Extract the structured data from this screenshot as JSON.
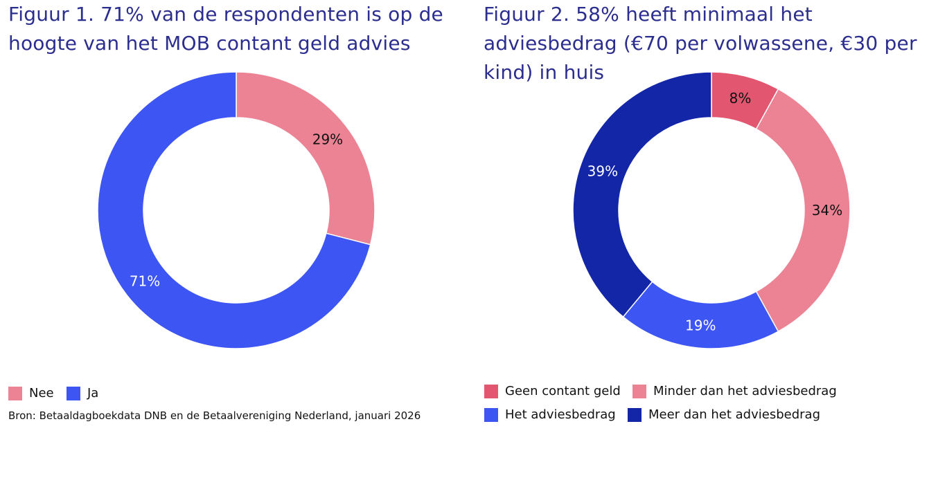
{
  "figure1": {
    "title": "Figuur 1.  71% van de respondenten is op de hoogte van het MOB contant geld advies",
    "legend": [
      {
        "label": "Nee",
        "color": "#ec8395"
      },
      {
        "label": "Ja",
        "color": "#3d55f2"
      }
    ]
  },
  "figure2": {
    "title": "Figuur 2.  58% heeft minimaal het adviesbedrag (€70 per volwassene, €30 per kind) in huis",
    "legend": [
      {
        "label": "Geen contant geld",
        "color": "#e25670"
      },
      {
        "label": "Minder dan het adviesbedrag",
        "color": "#ec8395"
      },
      {
        "label": "Het adviesbedrag",
        "color": "#3d55f2"
      },
      {
        "label": "Meer dan het adviesbedrag",
        "color": "#1426a8"
      }
    ]
  },
  "source": "Bron: Betaaldagboekdata DNB en de Betaalvereniging Nederland, januari 2026",
  "chart_data": [
    {
      "type": "pie",
      "donut": true,
      "title": "Figuur 1.  71% van de respondenten is op de hoogte van het MOB contant geld advies",
      "slices": [
        {
          "label": "Nee",
          "value": 29,
          "display": "29%",
          "color": "#ec8395",
          "text_color": "#111111"
        },
        {
          "label": "Ja",
          "value": 71,
          "display": "71%",
          "color": "#3d55f2",
          "text_color": "#ffffff"
        }
      ],
      "legend_placement": "bottom-left"
    },
    {
      "type": "pie",
      "donut": true,
      "title": "Figuur 2.  58% heeft minimaal het adviesbedrag (€70 per volwassene, €30 per kind) in huis",
      "slices": [
        {
          "label": "Geen contant geld",
          "value": 8,
          "display": "8%",
          "color": "#e25670",
          "text_color": "#111111"
        },
        {
          "label": "Minder dan het adviesbedrag",
          "value": 34,
          "display": "34%",
          "color": "#ec8395",
          "text_color": "#111111"
        },
        {
          "label": "Het adviesbedrag",
          "value": 19,
          "display": "19%",
          "color": "#3d55f2",
          "text_color": "#ffffff"
        },
        {
          "label": "Meer dan het adviesbedrag",
          "value": 39,
          "display": "39%",
          "color": "#1426a8",
          "text_color": "#ffffff"
        }
      ],
      "legend_placement": "bottom-left"
    }
  ]
}
